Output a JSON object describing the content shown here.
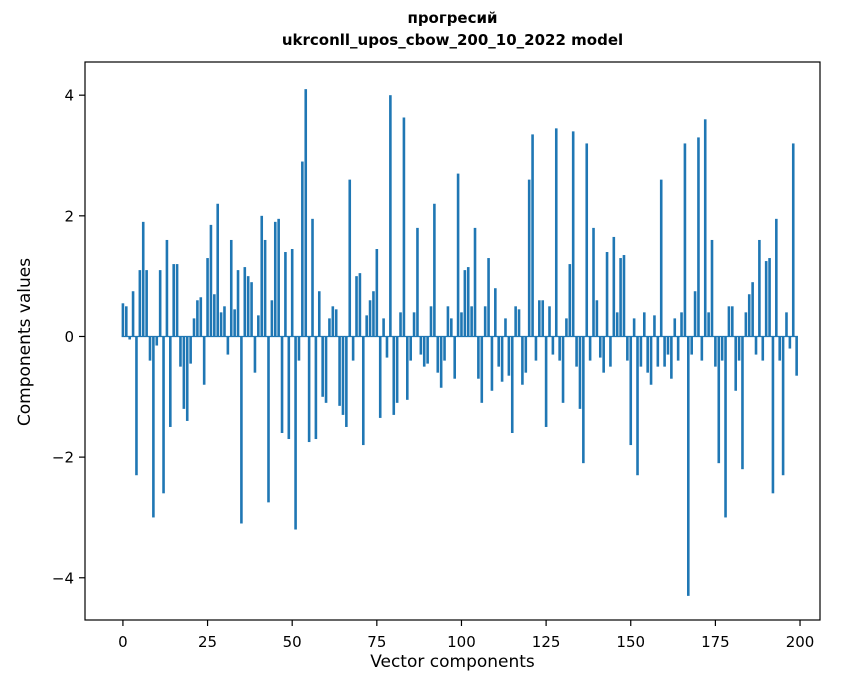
{
  "chart_data": {
    "type": "bar",
    "title": "прогресий",
    "subtitle": "ukrconll_upos_cbow_200_10_2022 model",
    "xlabel": "Vector components",
    "ylabel": "Components values",
    "x_start": 0,
    "categories_note": "x = vector component index 0..199",
    "values": [
      0.55,
      0.5,
      -0.05,
      0.75,
      -2.3,
      1.1,
      1.9,
      1.1,
      -0.4,
      -3.0,
      -0.15,
      1.1,
      -2.6,
      1.6,
      -1.5,
      1.2,
      1.2,
      -0.5,
      -1.2,
      -1.4,
      -0.45,
      0.3,
      0.6,
      0.65,
      -0.8,
      1.3,
      1.85,
      0.7,
      2.2,
      0.4,
      0.5,
      -0.3,
      1.6,
      0.45,
      1.1,
      -3.1,
      1.15,
      1.0,
      0.9,
      -0.6,
      0.35,
      2.0,
      1.6,
      -2.75,
      0.6,
      1.9,
      1.95,
      -1.6,
      1.4,
      -1.7,
      1.45,
      -3.2,
      -0.4,
      2.9,
      4.1,
      -1.75,
      1.95,
      -1.7,
      0.75,
      -1.0,
      -1.1,
      0.3,
      0.5,
      0.45,
      -1.15,
      -1.3,
      -1.5,
      2.6,
      -0.4,
      1.0,
      1.05,
      -1.8,
      0.35,
      0.6,
      0.75,
      1.45,
      -1.35,
      0.3,
      -0.35,
      4.0,
      -1.3,
      -1.1,
      0.4,
      3.63,
      -1.05,
      -0.4,
      0.4,
      1.8,
      -0.3,
      -0.5,
      -0.45,
      0.5,
      2.2,
      -0.6,
      -0.85,
      -0.4,
      0.5,
      0.3,
      -0.7,
      2.7,
      0.4,
      1.1,
      1.15,
      0.5,
      1.8,
      -0.7,
      -1.1,
      0.5,
      1.3,
      -0.9,
      0.8,
      -0.5,
      -0.75,
      0.3,
      -0.65,
      -1.6,
      0.5,
      0.45,
      -0.8,
      -0.6,
      2.6,
      3.35,
      -0.4,
      0.6,
      0.6,
      -1.5,
      0.5,
      -0.3,
      3.45,
      -0.4,
      -1.1,
      0.3,
      1.2,
      3.4,
      -0.5,
      -1.2,
      -2.1,
      3.2,
      -0.4,
      1.8,
      0.6,
      -0.35,
      -0.6,
      1.4,
      -0.5,
      1.65,
      0.4,
      1.3,
      1.35,
      -0.4,
      -1.8,
      0.3,
      -2.3,
      -0.5,
      0.4,
      -0.6,
      -0.8,
      0.35,
      -0.5,
      2.6,
      -0.5,
      -0.3,
      -0.7,
      0.3,
      -0.4,
      0.4,
      3.2,
      -4.3,
      -0.3,
      0.75,
      3.3,
      -0.4,
      3.6,
      0.4,
      1.6,
      -0.5,
      -2.1,
      -0.4,
      -3.0,
      0.5,
      0.5,
      -0.9,
      -0.4,
      -2.2,
      0.4,
      0.7,
      0.9,
      -0.3,
      1.6,
      -0.4,
      1.25,
      1.3,
      -2.6,
      1.95,
      -0.4,
      -2.3,
      0.4,
      -0.2,
      3.2,
      -0.65
    ],
    "xticks": [
      0,
      25,
      50,
      75,
      100,
      125,
      150,
      175,
      200
    ],
    "yticks": [
      -4,
      -2,
      0,
      2,
      4
    ],
    "xlim": [
      -11.2,
      205.9
    ],
    "ylim": [
      -4.7,
      4.55
    ],
    "bar_color": "#1f77b4",
    "grid": false,
    "legend": null
  }
}
